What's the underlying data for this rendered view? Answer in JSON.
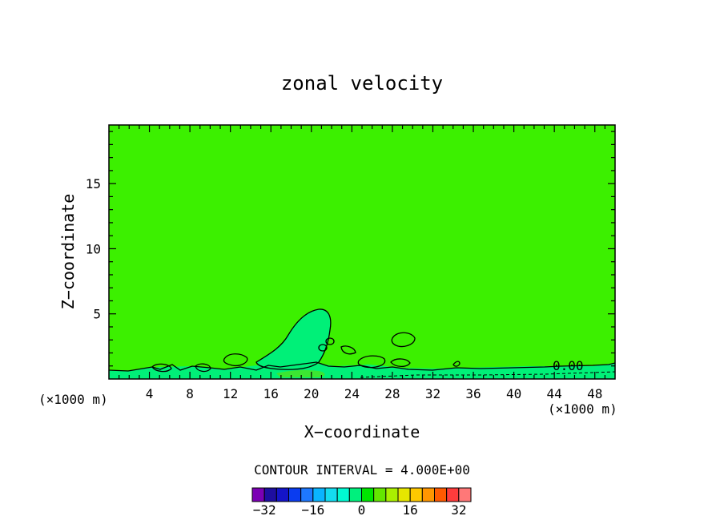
{
  "chart_data": {
    "type": "heatmap",
    "title": "zonal velocity",
    "xlabel": "X−coordinate",
    "ylabel": "Z−coordinate",
    "x_unit_left": "(×1000 m)",
    "x_unit_right": "(×1000 m)",
    "xlim": [
      0,
      50
    ],
    "ylim": [
      0,
      19.5
    ],
    "x_ticks": [
      4,
      8,
      12,
      16,
      20,
      24,
      28,
      32,
      36,
      40,
      44,
      48
    ],
    "y_ticks": [
      5,
      10,
      15
    ],
    "background_value": 0,
    "contour_label": "0.00",
    "contour_interval_text": "CONTOUR INTERVAL =  4.000E+00",
    "colorbar": {
      "min": -36,
      "max": 36,
      "step": 4,
      "tick_values": [
        -32,
        -16,
        0,
        16,
        32
      ],
      "colors": [
        "#7b00b4",
        "#1e0ea0",
        "#1414c8",
        "#0a3cf0",
        "#1e78ff",
        "#0ab4ff",
        "#14dcf0",
        "#00fad2",
        "#00f07d",
        "#00e600",
        "#64e600",
        "#aaf000",
        "#e6e600",
        "#ffc800",
        "#ff9600",
        "#ff5a00",
        "#ff3c3c",
        "#ff7878"
      ]
    },
    "features": [
      {
        "type": "positive_region",
        "x_center": 20,
        "z_top": 5.5,
        "z_bottom": 0.3,
        "color": "#00f07d"
      },
      {
        "type": "near_surface_layer",
        "z_top": 0.7,
        "color": "#00f07d"
      }
    ]
  }
}
